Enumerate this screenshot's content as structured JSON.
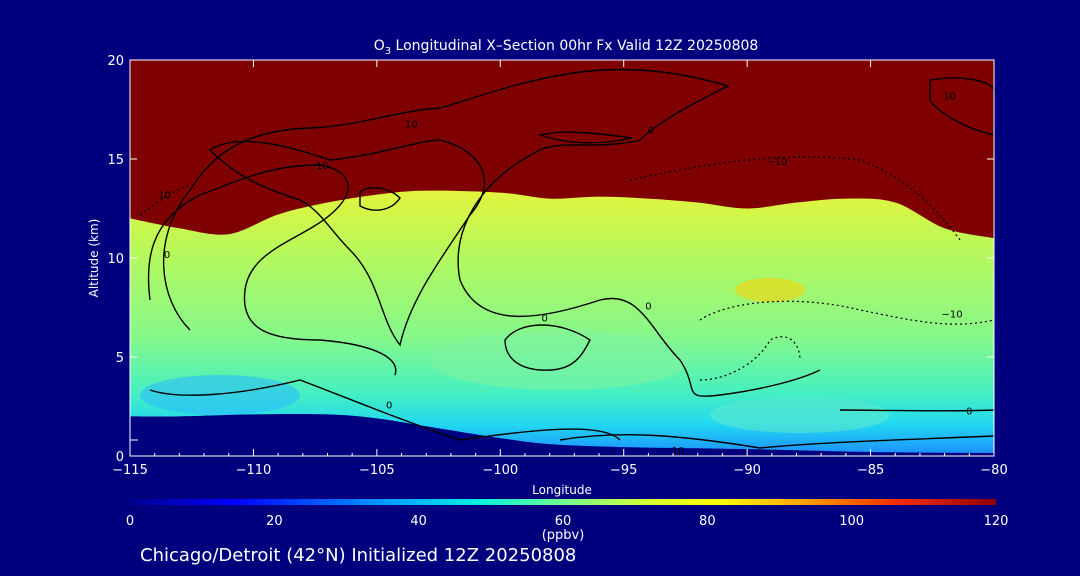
{
  "chart_data": {
    "type": "heatmap",
    "title_species": "O",
    "title_subscript": "3",
    "title_rest": " Longitudinal X–Section 00hr  Fx Valid 12Z 20250808",
    "xlabel": "Longitude",
    "ylabel": "Altitude (km)",
    "xlim": [
      -115,
      -80
    ],
    "ylim": [
      0,
      20
    ],
    "x_ticks": [
      -115,
      -110,
      -105,
      -100,
      -95,
      -90,
      -85,
      -80
    ],
    "x_tick_labels": [
      "−115",
      "−110",
      "−105",
      "−100",
      "−95",
      "−90",
      "−85",
      "−80"
    ],
    "y_ticks": [
      0,
      5,
      10,
      15,
      20
    ],
    "y_tick_labels": [
      "0",
      "5",
      "10",
      "15",
      "20"
    ],
    "colorbar": {
      "min": 0,
      "max": 120,
      "ticks": [
        0,
        20,
        40,
        60,
        80,
        100,
        120
      ],
      "tick_labels": [
        "0",
        "20",
        "40",
        "60",
        "80",
        "100",
        "120"
      ],
      "units": "(ppbv)"
    },
    "surface_top_km": [
      [
        -115,
        2.0
      ],
      [
        -113,
        2.0
      ],
      [
        -110,
        2.1
      ],
      [
        -107,
        2.1
      ],
      [
        -105,
        1.9
      ],
      [
        -103,
        1.5
      ],
      [
        -100,
        0.9
      ],
      [
        -98,
        0.6
      ],
      [
        -95,
        0.45
      ],
      [
        -90,
        0.35
      ],
      [
        -85,
        0.2
      ],
      [
        -80,
        0.15
      ]
    ],
    "tropopause_km": [
      [
        -115,
        12.0
      ],
      [
        -113,
        11.5
      ],
      [
        -111,
        11.2
      ],
      [
        -109,
        12.2
      ],
      [
        -107,
        12.8
      ],
      [
        -105,
        13.2
      ],
      [
        -103,
        13.4
      ],
      [
        -100,
        13.3
      ],
      [
        -98,
        13.0
      ],
      [
        -96,
        13.1
      ],
      [
        -94,
        13.0
      ],
      [
        -92,
        12.8
      ],
      [
        -90,
        12.5
      ],
      [
        -88,
        12.8
      ],
      [
        -86,
        13.0
      ],
      [
        -84,
        12.8
      ],
      [
        -82,
        11.5
      ],
      [
        -80,
        11.0
      ]
    ],
    "contour_labels": [
      {
        "text": "10",
        "x": -103.6,
        "y": 16.6
      },
      {
        "text": "10",
        "x": -107.2,
        "y": 14.5
      },
      {
        "text": "10",
        "x": -113.6,
        "y": 13.0
      },
      {
        "text": "0",
        "x": -113.5,
        "y": 10.0
      },
      {
        "text": "0",
        "x": -98.2,
        "y": 6.8
      },
      {
        "text": "0",
        "x": -94.0,
        "y": 7.4
      },
      {
        "text": "0",
        "x": -104.5,
        "y": 2.4
      },
      {
        "text": "0",
        "x": -81.0,
        "y": 2.1
      },
      {
        "text": "−10",
        "x": -88.8,
        "y": 14.7
      },
      {
        "text": "−10",
        "x": -81.7,
        "y": 7.0
      },
      {
        "text": "10",
        "x": -92.8,
        "y": 0.1
      },
      {
        "text": "10",
        "x": -81.8,
        "y": 18.0
      },
      {
        "text": "0",
        "x": -93.9,
        "y": 16.3
      }
    ]
  },
  "footer": "Chicago/Detroit (42°N) Initialized 12Z 20250808"
}
